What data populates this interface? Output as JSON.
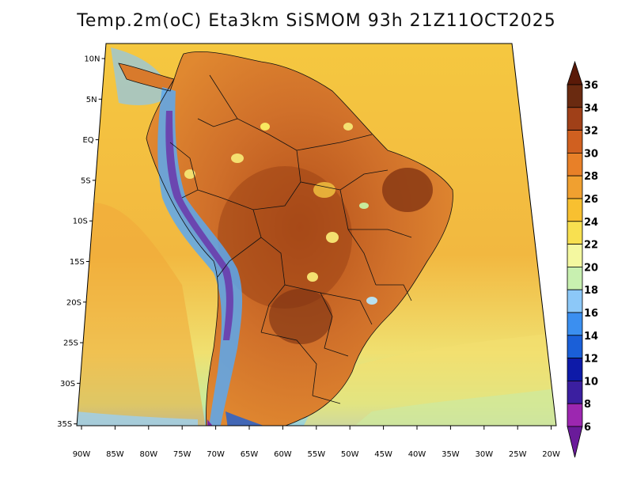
{
  "title": "Temp.2m(oC) Eta3km SiSMOM 93h 21Z11OCT2025",
  "map": {
    "variable": "2m temperature",
    "units": "oC",
    "region": "South America",
    "lat_ticks": [
      "10N",
      "5N",
      "EQ",
      "5S",
      "10S",
      "15S",
      "20S",
      "25S",
      "30S",
      "35S"
    ],
    "lon_ticks": [
      "90W",
      "85W",
      "80W",
      "75W",
      "70W",
      "65W",
      "60W",
      "55W",
      "50W",
      "45W",
      "40W",
      "35W",
      "30W",
      "25W",
      "20W"
    ]
  },
  "colorbar": {
    "labels": [
      "6",
      "8",
      "10",
      "12",
      "14",
      "16",
      "18",
      "20",
      "22",
      "24",
      "26",
      "28",
      "30",
      "32",
      "34",
      "36"
    ],
    "colors": [
      "#6a1b9a",
      "#9c27b0",
      "#3b1fa0",
      "#0d1aa8",
      "#1a5fd8",
      "#3b8ff0",
      "#8cc8f8",
      "#c8f0b0",
      "#f4f8a0",
      "#f8e050",
      "#f8c030",
      "#f0a030",
      "#e88028",
      "#d06020",
      "#a04018",
      "#6a2a10",
      "#5a1a08"
    ]
  }
}
